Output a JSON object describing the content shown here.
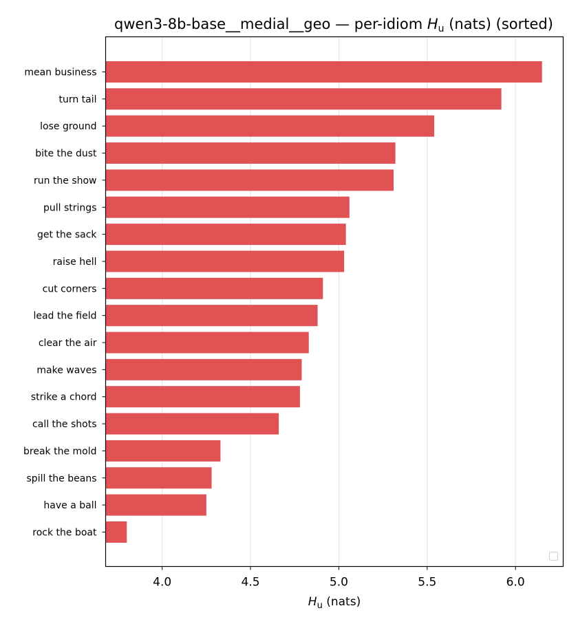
{
  "chart_data": {
    "type": "bar",
    "orientation": "horizontal",
    "title": "qwen3-8b-base__medial__geo — per-idiom",
    "title_symbol": "H",
    "title_subscript": "u",
    "title_suffix": "(nats) (sorted)",
    "xlabel_symbol": "H",
    "xlabel_subscript": "u",
    "xlabel_suffix": "(nats)",
    "ylabel": "",
    "categories": [
      "mean business",
      "turn tail",
      "lose ground",
      "bite the dust",
      "run the show",
      "pull strings",
      "get the sack",
      "raise hell",
      "cut corners",
      "lead the field",
      "clear the air",
      "make waves",
      "strike a chord",
      "call the shots",
      "break the mold",
      "spill the beans",
      "have a ball",
      "rock the boat"
    ],
    "values": [
      6.15,
      5.92,
      5.54,
      5.32,
      5.31,
      5.06,
      5.04,
      5.03,
      4.91,
      4.88,
      4.83,
      4.79,
      4.78,
      4.66,
      4.33,
      4.28,
      4.25,
      3.8
    ],
    "xlim": [
      3.68,
      6.27
    ],
    "xticks": [
      4.0,
      4.5,
      5.0,
      5.5,
      6.0
    ],
    "xtick_labels": [
      "4.0",
      "4.5",
      "5.0",
      "5.5",
      "6.0"
    ],
    "grid": "x",
    "legend": "bottom-right (empty)",
    "bar_color": "#e05254",
    "grid_color": "#e5e5e5"
  }
}
